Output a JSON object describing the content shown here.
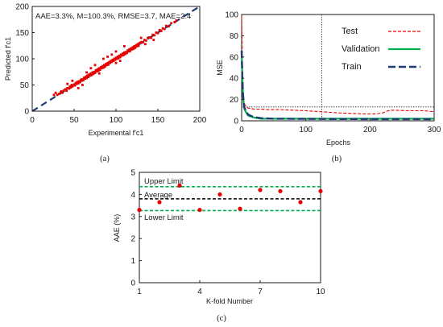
{
  "colors": {
    "red_points": "#e60000",
    "dashed_blue": "#1f3b73",
    "test_red": "#e60000",
    "validation_green": "#00b050",
    "train_navy": "#1f3b73",
    "limit_green": "#00b050",
    "average_black": "#000000"
  },
  "chart_data": [
    {
      "id": "a",
      "type": "scatter",
      "panel_label": "(a)",
      "annotation": "AAE=3.3%, M=100.3%, RMSE=3.7, MAE=2.4",
      "xlabel": "Experimental f'c1",
      "ylabel": "Predicted f'c1",
      "xlim": [
        0,
        200
      ],
      "ylim": [
        0,
        200
      ],
      "xticks": [
        0,
        50,
        100,
        150,
        200
      ],
      "yticks": [
        0,
        50,
        100,
        150,
        200
      ],
      "reference_line": [
        [
          0,
          0
        ],
        [
          200,
          200
        ]
      ],
      "points": [
        [
          26,
          31
        ],
        [
          28,
          35
        ],
        [
          30,
          31
        ],
        [
          32,
          33
        ],
        [
          34,
          36
        ],
        [
          35,
          38
        ],
        [
          36,
          35
        ],
        [
          38,
          40
        ],
        [
          40,
          42
        ],
        [
          41,
          39
        ],
        [
          42,
          44
        ],
        [
          44,
          43
        ],
        [
          45,
          47
        ],
        [
          46,
          45
        ],
        [
          47,
          50
        ],
        [
          48,
          47
        ],
        [
          50,
          51
        ],
        [
          51,
          49
        ],
        [
          52,
          54
        ],
        [
          53,
          52
        ],
        [
          54,
          56
        ],
        [
          55,
          53
        ],
        [
          56,
          57
        ],
        [
          57,
          55
        ],
        [
          58,
          60
        ],
        [
          59,
          58
        ],
        [
          60,
          61
        ],
        [
          61,
          59
        ],
        [
          62,
          64
        ],
        [
          63,
          62
        ],
        [
          64,
          66
        ],
        [
          65,
          63
        ],
        [
          66,
          68
        ],
        [
          67,
          65
        ],
        [
          68,
          70
        ],
        [
          69,
          68
        ],
        [
          70,
          72
        ],
        [
          71,
          69
        ],
        [
          72,
          74
        ],
        [
          73,
          71
        ],
        [
          74,
          75
        ],
        [
          75,
          73
        ],
        [
          76,
          78
        ],
        [
          77,
          76
        ],
        [
          78,
          80
        ],
        [
          79,
          77
        ],
        [
          80,
          82
        ],
        [
          81,
          79
        ],
        [
          82,
          84
        ],
        [
          83,
          82
        ],
        [
          84,
          86
        ],
        [
          85,
          83
        ],
        [
          86,
          88
        ],
        [
          87,
          85
        ],
        [
          88,
          90
        ],
        [
          89,
          88
        ],
        [
          90,
          92
        ],
        [
          91,
          89
        ],
        [
          92,
          94
        ],
        [
          93,
          92
        ],
        [
          94,
          96
        ],
        [
          95,
          94
        ],
        [
          96,
          98
        ],
        [
          97,
          96
        ],
        [
          98,
          100
        ],
        [
          99,
          98
        ],
        [
          100,
          102
        ],
        [
          101,
          100
        ],
        [
          102,
          104
        ],
        [
          103,
          101
        ],
        [
          104,
          106
        ],
        [
          105,
          103
        ],
        [
          106,
          108
        ],
        [
          107,
          106
        ],
        [
          108,
          110
        ],
        [
          109,
          107
        ],
        [
          110,
          112
        ],
        [
          111,
          109
        ],
        [
          112,
          113
        ],
        [
          113,
          111
        ],
        [
          114,
          116
        ],
        [
          115,
          114
        ],
        [
          116,
          118
        ],
        [
          117,
          115
        ],
        [
          118,
          120
        ],
        [
          119,
          118
        ],
        [
          120,
          122
        ],
        [
          121,
          119
        ],
        [
          122,
          124
        ],
        [
          123,
          121
        ],
        [
          124,
          126
        ],
        [
          125,
          124
        ],
        [
          126,
          128
        ],
        [
          127,
          125
        ],
        [
          128,
          130
        ],
        [
          130,
          132
        ],
        [
          132,
          131
        ],
        [
          134,
          136
        ],
        [
          136,
          135
        ],
        [
          138,
          140
        ],
        [
          140,
          141
        ],
        [
          142,
          140
        ],
        [
          144,
          146
        ],
        [
          146,
          145
        ],
        [
          148,
          150
        ],
        [
          150,
          149
        ],
        [
          152,
          155
        ],
        [
          154,
          153
        ],
        [
          156,
          158
        ],
        [
          158,
          157
        ],
        [
          160,
          163
        ],
        [
          163,
          162
        ],
        [
          166,
          168
        ],
        [
          170,
          170
        ],
        [
          172,
          173
        ],
        [
          55,
          44
        ],
        [
          60,
          50
        ],
        [
          70,
          82
        ],
        [
          75,
          88
        ],
        [
          85,
          100
        ],
        [
          90,
          104
        ],
        [
          95,
          108
        ],
        [
          100,
          114
        ],
        [
          110,
          124
        ],
        [
          130,
          140
        ],
        [
          135,
          128
        ],
        [
          145,
          136
        ],
        [
          100,
          92
        ],
        [
          105,
          96
        ],
        [
          80,
          72
        ],
        [
          65,
          74
        ],
        [
          48,
          58
        ],
        [
          42,
          52
        ]
      ]
    },
    {
      "id": "b",
      "type": "line",
      "panel_label": "(b)",
      "xlabel": "Epochs",
      "ylabel": "MSE",
      "xlim": [
        0,
        300
      ],
      "ylim": [
        0,
        100
      ],
      "xticks": [
        0,
        100,
        200,
        300
      ],
      "yticks": [
        0,
        20,
        40,
        60,
        80,
        100
      ],
      "best_epoch_x": 125,
      "best_level_y": 13,
      "series": [
        {
          "name": "Test",
          "x": [
            0,
            1,
            2,
            3,
            5,
            8,
            10,
            15,
            20,
            30,
            40,
            60,
            80,
            100,
            125,
            150,
            170,
            190,
            210,
            220,
            225,
            235,
            260,
            285,
            300
          ],
          "values": [
            98,
            60,
            30,
            20,
            15,
            13,
            12,
            11.5,
            11,
            11,
            10.5,
            10.5,
            10,
            9.5,
            8.5,
            7.5,
            7,
            6.5,
            6.5,
            7.5,
            9,
            10,
            9.5,
            9.5,
            8.5
          ]
        },
        {
          "name": "Validation",
          "x": [
            0,
            1,
            2,
            3,
            4,
            6,
            8,
            10,
            15,
            20,
            25,
            30,
            50,
            100,
            150,
            200,
            250,
            300
          ],
          "values": [
            65,
            42,
            26,
            17,
            12,
            9,
            7,
            5,
            4,
            3,
            2.5,
            2,
            2,
            2,
            2,
            2,
            2,
            2
          ]
        },
        {
          "name": "Train",
          "x": [
            0,
            1,
            2,
            3,
            4,
            6,
            8,
            10,
            15,
            20,
            25,
            30,
            50,
            100,
            150,
            200,
            250,
            300
          ],
          "values": [
            66,
            43,
            27,
            18,
            13,
            10,
            8,
            6,
            4.5,
            3.5,
            3,
            2.5,
            2,
            1.8,
            1.7,
            1.6,
            1.6,
            1.5
          ]
        }
      ]
    },
    {
      "id": "c",
      "type": "scatter",
      "panel_label": "(c)",
      "xlabel": "K-fold Number",
      "ylabel": "AAE (%)",
      "xlim": [
        1,
        10
      ],
      "ylim": [
        0,
        5
      ],
      "xticks": [
        1,
        4,
        7,
        10
      ],
      "yticks": [
        0,
        1,
        2,
        3,
        4,
        5
      ],
      "reference_lines": [
        {
          "name": "Upper Limit",
          "value": 4.35
        },
        {
          "name": "Average",
          "value": 3.8
        },
        {
          "name": "Lower Limit",
          "value": 3.27
        }
      ],
      "points": [
        [
          1,
          3.3
        ],
        [
          2,
          3.65
        ],
        [
          3,
          4.4
        ],
        [
          4,
          3.3
        ],
        [
          5,
          4.0
        ],
        [
          6,
          3.35
        ],
        [
          7,
          4.2
        ],
        [
          8,
          4.15
        ],
        [
          9,
          3.65
        ],
        [
          10,
          4.15
        ]
      ]
    }
  ]
}
